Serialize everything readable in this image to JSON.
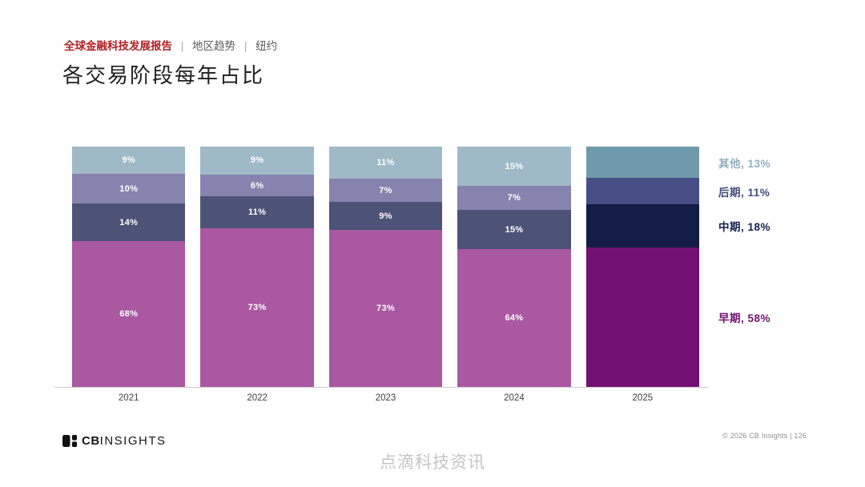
{
  "breadcrumb": {
    "report": "全球金融科技发展报告",
    "separator": "|",
    "section": "地区趋势",
    "region": "纽约"
  },
  "title": "各交易阶段每年占比",
  "chart_data": {
    "type": "bar",
    "stacked": true,
    "title": "各交易阶段每年占比",
    "unit": "%",
    "ylim": [
      0,
      100
    ],
    "grid": false,
    "legend_position": "right",
    "categories": [
      "2021",
      "2022",
      "2023",
      "2024",
      "2025"
    ],
    "highlight_category": "2025",
    "labels_hidden_categories": [
      "2025"
    ],
    "series": [
      {
        "key": "early",
        "name": "早期",
        "values": [
          68,
          73,
          73,
          64,
          58
        ],
        "color": "#A958A1",
        "color_highlight": "#721173"
      },
      {
        "key": "mid",
        "name": "中期",
        "values": [
          14,
          11,
          9,
          15,
          18
        ],
        "color": "#4C5376",
        "color_highlight": "#131C45"
      },
      {
        "key": "late",
        "name": "后期",
        "values": [
          10,
          6,
          7,
          7,
          11
        ],
        "color": "#8683AE",
        "color_highlight": "#474E85"
      },
      {
        "key": "other",
        "name": "其他",
        "values": [
          9,
          9,
          11,
          15,
          13
        ],
        "color": "#9FBAC6",
        "color_highlight": "#6F9AAB"
      }
    ],
    "legend": [
      {
        "key": "other",
        "label": "其他, 13%",
        "color": "#8FAEBC"
      },
      {
        "key": "late",
        "label": "后期, 11%",
        "color": "#414D7A"
      },
      {
        "key": "mid",
        "label": "中期, 18%",
        "color": "#15204E"
      },
      {
        "key": "early",
        "label": "早期, 58%",
        "color": "#721173"
      }
    ]
  },
  "footer": {
    "logo_cb": "CB",
    "logo_insights": "INSIGHTS",
    "copyright": "© 2026 CB Insights  |  126",
    "watermark": "点滴科技资讯"
  }
}
